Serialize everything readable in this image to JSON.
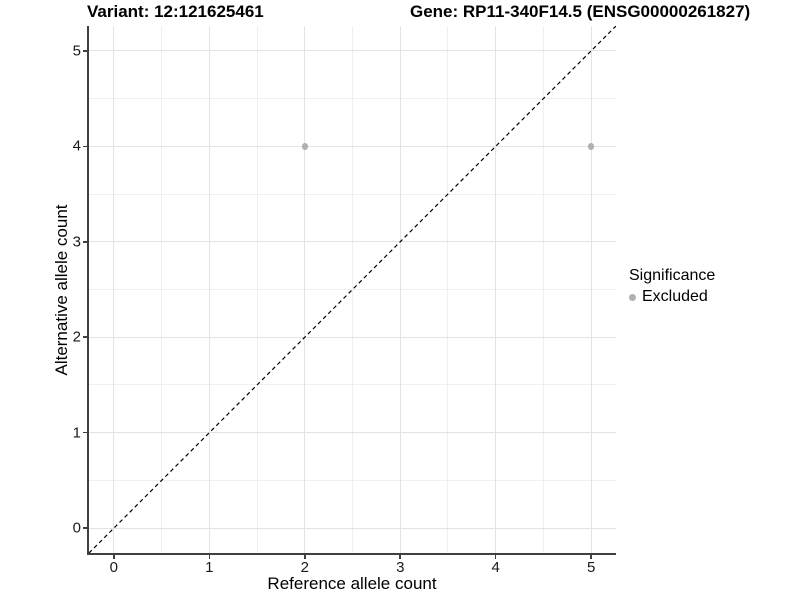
{
  "header": {
    "variant_title": "Variant: 12:121625461",
    "gene_title": "Gene: RP11-340F14.5 (ENSG00000261827)"
  },
  "chart_data": {
    "type": "scatter",
    "title": "Variant: 12:121625461 — Gene: RP11-340F14.5 (ENSG00000261827)",
    "xlabel": "Reference allele count",
    "ylabel": "Alternative allele count",
    "x_ticks": [
      0,
      1,
      2,
      3,
      4,
      5
    ],
    "y_ticks": [
      0,
      1,
      2,
      3,
      4,
      5
    ],
    "xlim": [
      -0.26,
      5.26
    ],
    "ylim": [
      -0.26,
      5.26
    ],
    "grid": "major and minor gridlines on",
    "points": [
      {
        "x": 2,
        "y": 4,
        "significance": "Excluded"
      },
      {
        "x": 5,
        "y": 4,
        "significance": "Excluded"
      }
    ],
    "reference_line": {
      "kind": "identity y=x",
      "style": "dashed",
      "color": "#000000"
    },
    "legend_position": "right"
  },
  "legend": {
    "title": "Significance",
    "items": [
      {
        "label": "Excluded",
        "color": "#b0b0b0"
      }
    ]
  },
  "colors": {
    "background": "#ffffff",
    "point_excluded": "#b0b0b0",
    "axis_line": "#404040",
    "grid_major": "#e3e3e3",
    "grid_minor": "#efefef",
    "reference_line": "#000000",
    "text": "#000000"
  }
}
